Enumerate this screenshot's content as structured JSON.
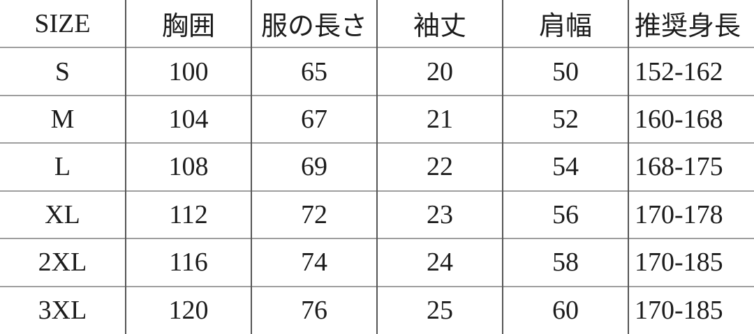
{
  "chart_data": {
    "type": "table",
    "title": "",
    "columns": [
      "SIZE",
      "胸囲",
      "服の長さ",
      "袖丈",
      "肩幅",
      "推奨身長"
    ],
    "rows": [
      [
        "S",
        "100",
        "65",
        "20",
        "50",
        "152-162"
      ],
      [
        "M",
        "104",
        "67",
        "21",
        "52",
        "160-168"
      ],
      [
        "L",
        "108",
        "69",
        "22",
        "54",
        "168-175"
      ],
      [
        "XL",
        "112",
        "72",
        "23",
        "56",
        "170-178"
      ],
      [
        "2XL",
        "116",
        "74",
        "24",
        "58",
        "170-185"
      ],
      [
        "3XL",
        "120",
        "76",
        "25",
        "60",
        "170-185"
      ]
    ],
    "layout": {
      "column_alignment": [
        "center",
        "center",
        "center",
        "center",
        "center",
        "left"
      ],
      "grid": "inner-rules-only"
    }
  },
  "colors": {
    "background": "#ffffff",
    "text": "#1c1c1c",
    "vertical_rule": "#555555",
    "horizontal_rule": "#9e9e9e"
  }
}
